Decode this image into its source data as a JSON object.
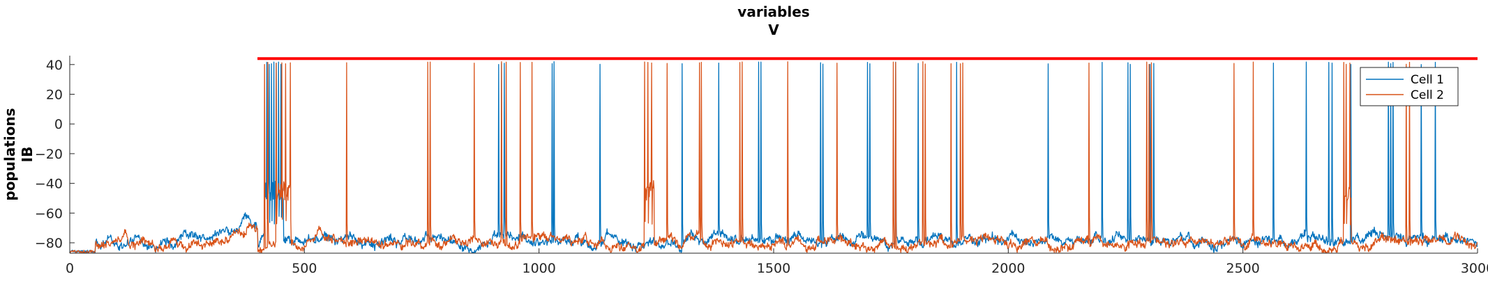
{
  "chart_data": {
    "type": "line",
    "title": "variables",
    "subtitle": "V",
    "ylabel_line1": "populations",
    "ylabel_line2": "IB",
    "xlabel": "",
    "xlim": [
      0,
      3000
    ],
    "ylim": [
      -87,
      46
    ],
    "x_ticks": [
      0,
      500,
      1000,
      1500,
      2000,
      2500,
      3000
    ],
    "y_ticks": [
      -80,
      -60,
      -40,
      -20,
      0,
      20,
      40
    ],
    "grid": false,
    "legend_position": "top-right",
    "threshold_line": {
      "y": 44,
      "x_start": 400,
      "x_end": 3000,
      "color": "#ff0000"
    },
    "series": [
      {
        "name": "Cell 1",
        "color": "#0072BD",
        "baseline": -78,
        "spike_times": [
          420,
          425,
          430,
          435,
          440,
          445,
          450,
          914,
          920,
          926,
          1028,
          1032,
          1130,
          1305,
          1383,
          1468,
          1473,
          1600,
          1605,
          1700,
          1705,
          1760,
          1808,
          1890,
          2085,
          2200,
          2255,
          2260,
          2302,
          2310,
          2565,
          2635,
          2683,
          2690,
          2730,
          2810,
          2815,
          2820,
          2880,
          2910
        ],
        "burst_windows": [
          [
            415,
            455
          ]
        ]
      },
      {
        "name": "Cell 2",
        "color": "#D95319",
        "baseline": -80,
        "spike_times": [
          415,
          422,
          440,
          452,
          460,
          470,
          590,
          763,
          768,
          862,
          920,
          930,
          960,
          985,
          1225,
          1232,
          1240,
          1273,
          1342,
          1346,
          1428,
          1433,
          1530,
          1635,
          1755,
          1760,
          1818,
          1823,
          1878,
          1898,
          1903,
          2172,
          2295,
          2300,
          2305,
          2481,
          2522,
          2715,
          2720,
          2728,
          2848,
          2855
        ],
        "burst_windows": [
          [
            440,
            470
          ],
          [
            1225,
            1245
          ],
          [
            2715,
            2730
          ]
        ]
      }
    ]
  }
}
